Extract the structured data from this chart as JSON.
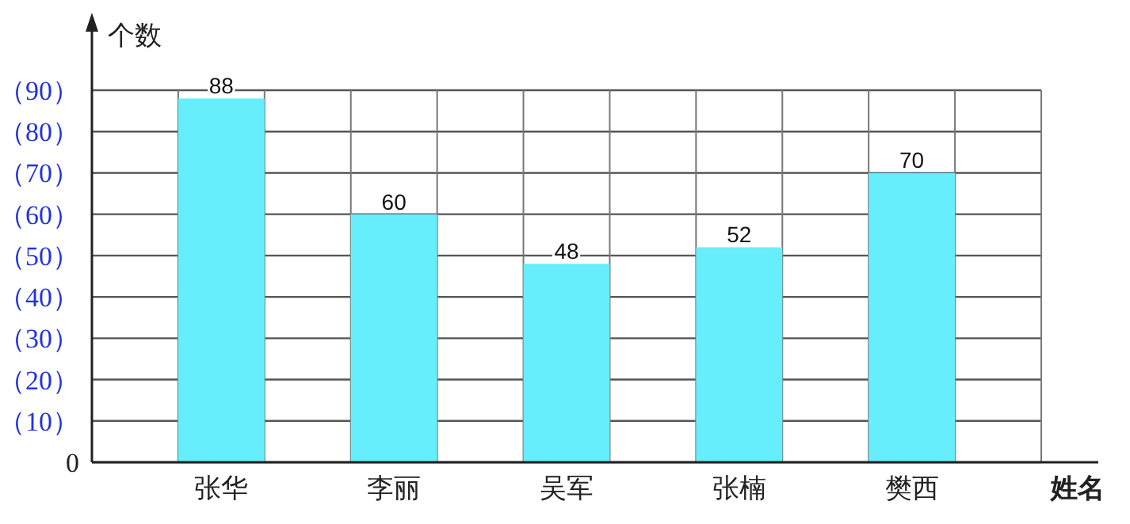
{
  "chart_data": {
    "type": "bar",
    "xlabel": "姓名",
    "ylabel": "个数",
    "categories": [
      "张华",
      "李丽",
      "吴军",
      "张楠",
      "樊西"
    ],
    "values": [
      88,
      60,
      48,
      52,
      70
    ],
    "color": "#66eefc",
    "ylim": [
      0,
      90
    ],
    "yticks": [
      0,
      {
        "value": 10,
        "label": "（10）"
      },
      {
        "value": 20,
        "label": "（20）"
      },
      {
        "value": 30,
        "label": "（30）"
      },
      {
        "value": 40,
        "label": "（40）"
      },
      {
        "value": 50,
        "label": "（50）"
      },
      {
        "value": 60,
        "label": "（60）"
      },
      {
        "value": 70,
        "label": "（70）"
      },
      {
        "value": 80,
        "label": "（80）"
      },
      {
        "value": 90,
        "label": "（90）"
      }
    ],
    "grid": true,
    "data_labels": true
  }
}
